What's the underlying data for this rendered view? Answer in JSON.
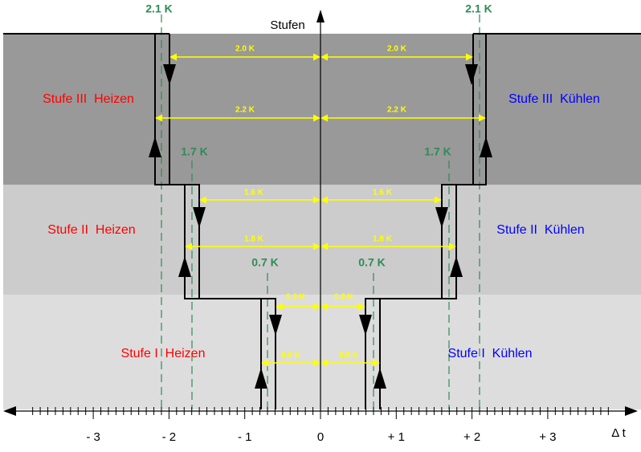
{
  "axis": {
    "y_label": "Stufen",
    "x_label": "Δ t",
    "x_ticks": [
      "- 3",
      "- 2",
      "- 1",
      "0",
      "+ 1",
      "+ 2",
      "+ 3"
    ]
  },
  "thresholds": {
    "left_top": "2.1 K",
    "right_top": "2.1 K",
    "left_mid": "1.7 K",
    "right_mid": "1.7 K",
    "left_low": "0.7 K",
    "right_low": "0.7 K"
  },
  "hysteresis": {
    "s3_off_left": "2.0 K",
    "s3_off_right": "2.0 K",
    "s3_on_left": "2.2 K",
    "s3_on_right": "2.2 K",
    "s2_off_left": "1.6 K",
    "s2_off_right": "1.6 K",
    "s2_on_left": "1.8 K",
    "s2_on_right": "1.8 K",
    "s1_off_left": "0.6 K",
    "s1_off_right": "0.6 K",
    "s1_on_left": "0.8 K",
    "s1_on_right": "0.8 K"
  },
  "stages": {
    "s3_heat": "Stufe III  Heizen",
    "s3_cool": "Stufe III  Kühlen",
    "s2_heat": "Stufe II  Heizen",
    "s2_cool": "Stufe II  Kühlen",
    "s1_heat": "Stufe I  Heizen",
    "s1_cool": "Stufe I  Kühlen"
  }
}
